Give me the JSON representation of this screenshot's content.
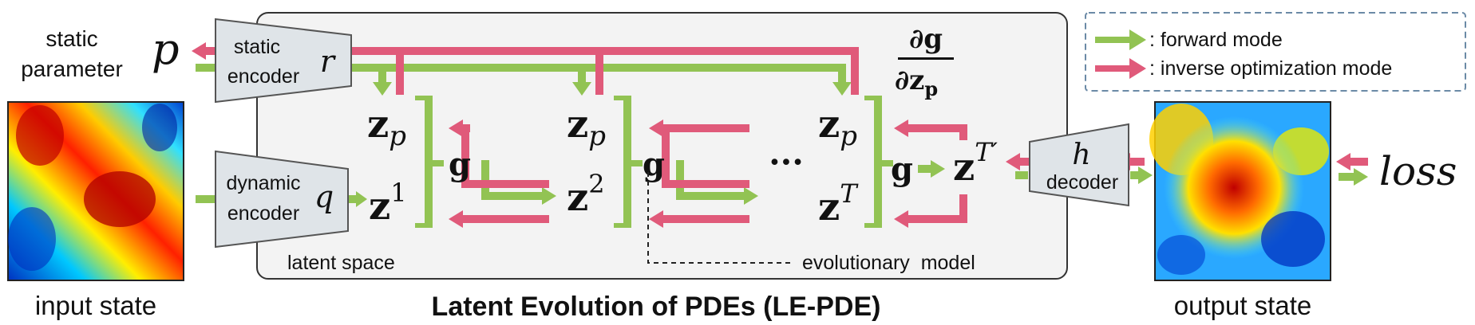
{
  "inputs": {
    "static_label_1": "static",
    "static_label_2": "parameter",
    "p_symbol": "p",
    "input_caption": "input state"
  },
  "encoders": {
    "static_1": "static",
    "static_2": "encoder",
    "static_symbol": "r",
    "dynamic_1": "dynamic",
    "dynamic_2": "encoder",
    "dynamic_symbol": "q"
  },
  "latent": {
    "z": "z",
    "p_sub": "p",
    "sup1": "1",
    "sup2": "2",
    "supT": "T",
    "supTprime": "T′",
    "g": "g",
    "ellipsis": "···",
    "dg": "∂g",
    "dz": "∂z",
    "dz_sub": "p",
    "latent_space_label": "latent space",
    "evolutionary_label": "evolutionary  model"
  },
  "decoder": {
    "symbol": "h",
    "label": "decoder"
  },
  "output": {
    "caption": "output state",
    "loss": "loss"
  },
  "title": "Latent Evolution of PDEs (LE-PDE)",
  "legend": {
    "forward": ": forward mode",
    "inverse": ": inverse optimization mode"
  },
  "colors": {
    "forward": "#92c353",
    "inverse": "#e05a7a",
    "panel_bg": "#f3f3f3",
    "encoder_fill": "#dfe4e8",
    "legend_border": "#6b8aa6"
  }
}
